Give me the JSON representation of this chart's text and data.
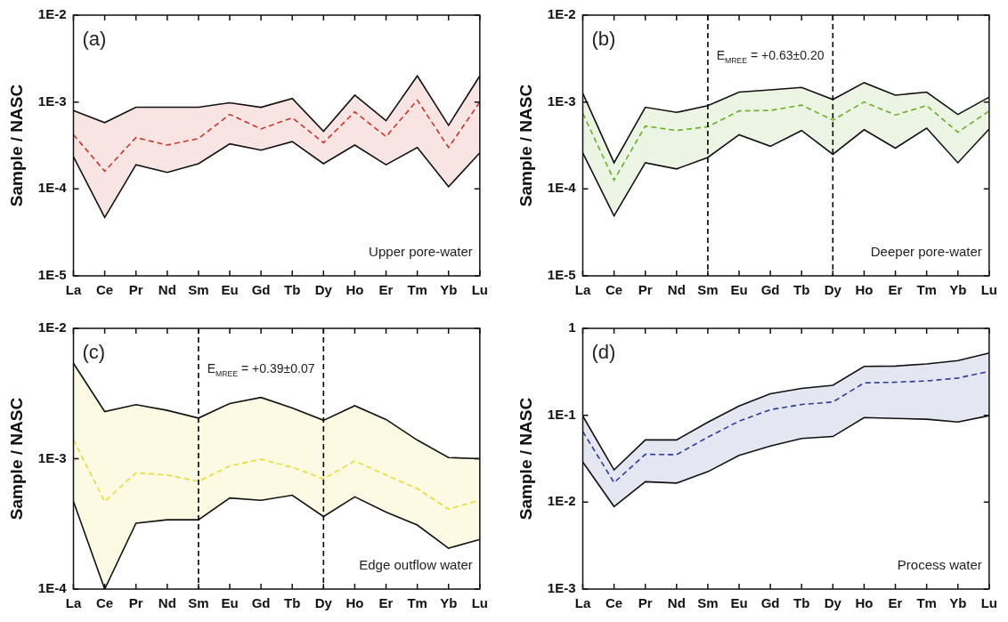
{
  "chart_data": [
    {
      "type": "line",
      "ylabel": "Sample / NASC",
      "categories": [
        "La",
        "Ce",
        "Pr",
        "Nd",
        "Sm",
        "Eu",
        "Gd",
        "Tb",
        "Dy",
        "Ho",
        "Er",
        "Tm",
        "Yb",
        "Lu"
      ],
      "log": "y",
      "ylim": [
        1e-05,
        0.01
      ],
      "yticks": [
        {
          "value": 1e-05,
          "label": "1E-5"
        },
        {
          "value": 0.0001,
          "label": "1E-4"
        },
        {
          "value": 0.001,
          "label": "1E-3"
        },
        {
          "value": 0.01,
          "label": "1E-2"
        }
      ],
      "grid": false,
      "legend": false,
      "line_style": "dashed",
      "marker": "none",
      "annotations": [
        "(a)",
        "Upper pore-water"
      ],
      "series": [
        {
          "color": "#111111",
          "line_style": "solid",
          "values": [
            0.0008,
            0.00058,
            0.00087,
            0.00087,
            0.00087,
            0.00098,
            0.00087,
            0.0011,
            0.00046,
            0.0012,
            0.00061,
            0.002,
            0.00054,
            0.002
          ]
        },
        {
          "color": "#111111",
          "line_style": "solid",
          "values": [
            0.000235,
            4.7e-05,
            0.00019,
            0.000155,
            0.000195,
            0.00033,
            0.00028,
            0.00035,
            0.000195,
            0.00032,
            0.00019,
            0.0003,
            0.000106,
            0.00026
          ]
        },
        {
          "color": "#c8362a",
          "values": [
            0.00042,
            0.00016,
            0.00039,
            0.00032,
            0.00038,
            0.00072,
            0.00049,
            0.00066,
            0.00034,
            0.00077,
            0.0004,
            0.00105,
            0.0003,
            0.001
          ],
          "upper": [
            0.0008,
            0.00058,
            0.00087,
            0.00087,
            0.00087,
            0.00098,
            0.00087,
            0.0011,
            0.00046,
            0.0012,
            0.00061,
            0.002,
            0.00054,
            0.002
          ],
          "lower": [
            0.000235,
            4.7e-05,
            0.00019,
            0.000155,
            0.000195,
            0.00033,
            0.00028,
            0.00035,
            0.000195,
            0.00032,
            0.00019,
            0.0003,
            0.000106,
            0.00026
          ]
        }
      ]
    },
    {
      "type": "line",
      "ylabel": "Sample / NASC",
      "categories": [
        "La",
        "Ce",
        "Pr",
        "Nd",
        "Sm",
        "Eu",
        "Gd",
        "Tb",
        "Dy",
        "Ho",
        "Er",
        "Tm",
        "Yb",
        "Lu"
      ],
      "log": "y",
      "ylim": [
        1e-05,
        0.01
      ],
      "yticks": [
        {
          "value": 1e-05,
          "label": "1E-5"
        },
        {
          "value": 0.0001,
          "label": "1E-4"
        },
        {
          "value": 0.001,
          "label": "1E-3"
        },
        {
          "value": 0.01,
          "label": "1E-2"
        }
      ],
      "grid": false,
      "legend": false,
      "line_style": "dashed",
      "marker": "none",
      "annotations": [
        "(b)",
        "Deeper pore-water",
        "E$_{MREE}$ = +0.63±0.20"
      ],
      "ref_lines": [
        {
          "axis": "x",
          "value": "Sm",
          "line_style": "dashed",
          "color": "#000000"
        },
        {
          "axis": "x",
          "value": "Dy",
          "line_style": "dashed",
          "color": "#000000"
        }
      ],
      "series": [
        {
          "color": "#111111",
          "line_style": "solid",
          "values": [
            0.00126,
            0.0002,
            0.00087,
            0.00076,
            0.00091,
            0.0013,
            0.00138,
            0.00147,
            0.00107,
            0.00167,
            0.0012,
            0.0013,
            0.00072,
            0.00114
          ]
        },
        {
          "color": "#111111",
          "line_style": "solid",
          "values": [
            0.00026,
            4.9e-05,
            0.0002,
            0.00017,
            0.00023,
            0.00042,
            0.00031,
            0.00047,
            0.00025,
            0.00048,
            0.000295,
            0.0005,
            0.0002,
            0.00049
          ]
        },
        {
          "color": "#6ab023",
          "values": [
            0.00074,
            0.000126,
            0.00053,
            0.00047,
            0.00052,
            0.00079,
            0.0008,
            0.00092,
            0.00062,
            0.001,
            0.00071,
            0.00091,
            0.00045,
            0.00079
          ],
          "upper": [
            0.00126,
            0.0002,
            0.00087,
            0.00076,
            0.00091,
            0.0013,
            0.00138,
            0.00147,
            0.00107,
            0.00167,
            0.0012,
            0.0013,
            0.00072,
            0.00114
          ],
          "lower": [
            0.00026,
            4.9e-05,
            0.0002,
            0.00017,
            0.00023,
            0.00042,
            0.00031,
            0.00047,
            0.00025,
            0.00048,
            0.000295,
            0.0005,
            0.0002,
            0.00049
          ]
        }
      ]
    },
    {
      "type": "line",
      "ylabel": "Sample / NASC",
      "categories": [
        "La",
        "Ce",
        "Pr",
        "Nd",
        "Sm",
        "Eu",
        "Gd",
        "Tb",
        "Dy",
        "Ho",
        "Er",
        "Tm",
        "Yb",
        "Lu"
      ],
      "log": "y",
      "ylim": [
        0.0001,
        0.01
      ],
      "yticks": [
        {
          "value": 0.0001,
          "label": "1E-4"
        },
        {
          "value": 0.001,
          "label": "1E-3"
        },
        {
          "value": 0.01,
          "label": "1E-2"
        }
      ],
      "grid": false,
      "legend": false,
      "line_style": "dashed",
      "marker": "none",
      "annotations": [
        "(c)",
        "Edge outflow water",
        "E$_{MREE}$ = +0.39±0.07"
      ],
      "ref_lines": [
        {
          "axis": "x",
          "value": "Sm",
          "line_style": "dashed",
          "color": "#000000"
        },
        {
          "axis": "x",
          "value": "Dy",
          "line_style": "dashed",
          "color": "#000000"
        }
      ],
      "series": [
        {
          "color": "#111111",
          "line_style": "solid",
          "values": [
            0.0054,
            0.0023,
            0.0026,
            0.00235,
            0.00205,
            0.00265,
            0.00295,
            0.00245,
            0.00197,
            0.00255,
            0.002,
            0.00139,
            0.00102,
            0.001
          ]
        },
        {
          "color": "#111111",
          "line_style": "solid",
          "values": [
            0.00047,
            0.0001,
            0.00032,
            0.00034,
            0.00034,
            0.0005,
            0.00048,
            0.000525,
            0.00036,
            0.00051,
            0.00039,
            0.00031,
            0.000206,
            0.00024
          ]
        },
        {
          "color": "#e6dc2a",
          "values": [
            0.0014,
            0.00047,
            0.00078,
            0.00075,
            0.00067,
            0.00088,
            0.00099,
            0.00086,
            0.0007,
            0.00096,
            0.00075,
            0.00059,
            0.00041,
            0.00048
          ],
          "upper": [
            0.0054,
            0.0023,
            0.0026,
            0.00235,
            0.00205,
            0.00265,
            0.00295,
            0.00245,
            0.00197,
            0.00255,
            0.002,
            0.00139,
            0.00102,
            0.001
          ],
          "lower": [
            0.00047,
            0.0001,
            0.00032,
            0.00034,
            0.00034,
            0.0005,
            0.00048,
            0.000525,
            0.00036,
            0.00051,
            0.00039,
            0.00031,
            0.000206,
            0.00024
          ]
        }
      ]
    },
    {
      "type": "line",
      "ylabel": "Sample / NASC",
      "categories": [
        "La",
        "Ce",
        "Pr",
        "Nd",
        "Sm",
        "Eu",
        "Gd",
        "Tb",
        "Dy",
        "Ho",
        "Er",
        "Tm",
        "Yb",
        "Lu"
      ],
      "log": "y",
      "ylim": [
        0.001,
        1
      ],
      "yticks": [
        {
          "value": 0.001,
          "label": "1E-3"
        },
        {
          "value": 0.01,
          "label": "1E-2"
        },
        {
          "value": 0.1,
          "label": "1E-1"
        },
        1
      ],
      "grid": false,
      "legend": false,
      "line_style": "dashed",
      "marker": "none",
      "annotations": [
        "(d)",
        "Process water"
      ],
      "series": [
        {
          "color": "#111111",
          "line_style": "solid",
          "values": [
            0.098,
            0.0235,
            0.052,
            0.052,
            0.083,
            0.128,
            0.177,
            0.204,
            0.221,
            0.365,
            0.368,
            0.39,
            0.425,
            0.52
          ]
        },
        {
          "color": "#111111",
          "line_style": "solid",
          "values": [
            0.029,
            0.0089,
            0.0172,
            0.0166,
            0.0224,
            0.0345,
            0.0443,
            0.054,
            0.0569,
            0.094,
            0.092,
            0.09,
            0.0837,
            0.099
          ]
        },
        {
          "color": "#2e3a9a",
          "values": [
            0.065,
            0.0168,
            0.0355,
            0.0352,
            0.056,
            0.0855,
            0.116,
            0.133,
            0.142,
            0.236,
            0.24,
            0.248,
            0.268,
            0.32
          ],
          "upper": [
            0.098,
            0.0235,
            0.052,
            0.052,
            0.083,
            0.128,
            0.177,
            0.204,
            0.221,
            0.365,
            0.368,
            0.39,
            0.425,
            0.52
          ],
          "lower": [
            0.029,
            0.0089,
            0.0172,
            0.0166,
            0.0224,
            0.0345,
            0.0443,
            0.054,
            0.0569,
            0.094,
            0.092,
            0.09,
            0.0837,
            0.099
          ]
        }
      ]
    }
  ]
}
